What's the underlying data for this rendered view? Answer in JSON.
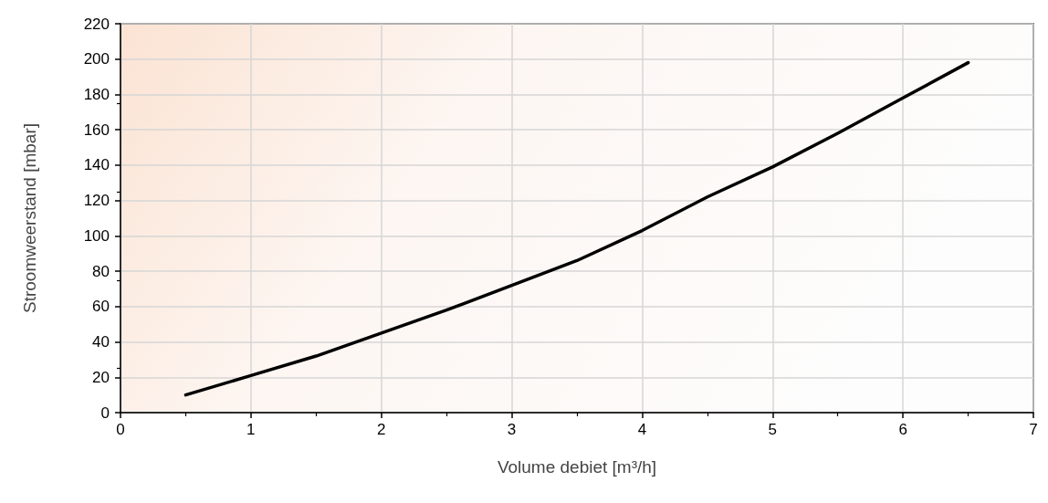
{
  "chart_data": {
    "type": "line",
    "xlabel": "Volume debiet [m³/h]",
    "ylabel": "Stroomweerstand [mbar]",
    "x": [
      0.5,
      1,
      1.5,
      2,
      2.5,
      3,
      3.5,
      4,
      4.5,
      5,
      5.5,
      6,
      6.5
    ],
    "series": [
      {
        "color": "#000000",
        "values": [
          10,
          21,
          32,
          45,
          58,
          72,
          86,
          103,
          122,
          139,
          158,
          178,
          198
        ]
      }
    ],
    "xlim": [
      0,
      7
    ],
    "xticks": [
      0,
      1,
      2,
      3,
      4,
      5,
      6,
      7
    ],
    "ylim": [
      0,
      220
    ],
    "yticks": [
      0,
      20,
      40,
      60,
      80,
      100,
      120,
      140,
      160,
      180,
      200,
      220
    ],
    "grid": true,
    "marker": "none",
    "line_style": "solid"
  }
}
